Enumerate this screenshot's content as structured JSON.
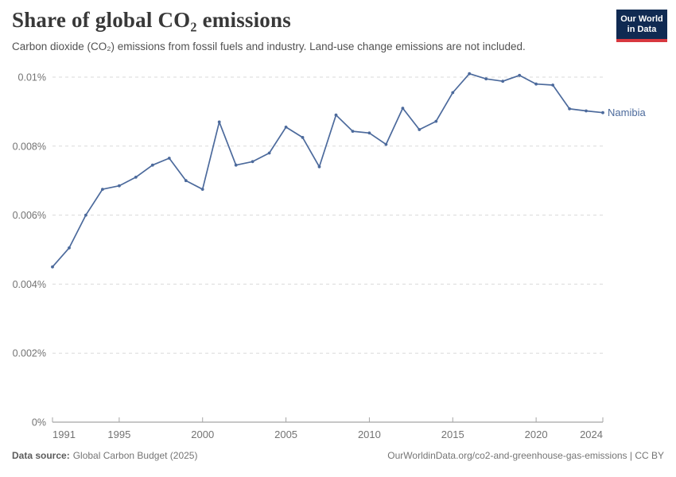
{
  "header": {
    "title": "Share of global CO₂ emissions",
    "subtitle": "Carbon dioxide (CO₂) emissions from fossil fuels and industry. Land-use change emissions are not included.",
    "logo": {
      "line1": "Our World",
      "line2": "in Data",
      "bg_color": "#102a52",
      "accent_color": "#d8383f"
    }
  },
  "chart_data": {
    "type": "line",
    "title": "Share of global CO₂ emissions",
    "xlabel": "",
    "ylabel": "",
    "unit": "%",
    "grid": "horizontal-dashed",
    "legend_position": "end-of-line-label",
    "xlim": [
      1991,
      2024
    ],
    "ylim": [
      0,
      0.01
    ],
    "x": [
      1991,
      1992,
      1993,
      1994,
      1995,
      1996,
      1997,
      1998,
      1999,
      2000,
      2001,
      2002,
      2003,
      2004,
      2005,
      2006,
      2007,
      2008,
      2009,
      2010,
      2011,
      2012,
      2013,
      2014,
      2015,
      2016,
      2017,
      2018,
      2019,
      2020,
      2021,
      2022,
      2023,
      2024
    ],
    "series": [
      {
        "name": "Namibia",
        "color": "#4c6a9c",
        "values": [
          0.0045,
          0.00505,
          0.006,
          0.00675,
          0.00685,
          0.0071,
          0.00745,
          0.00765,
          0.007,
          0.00675,
          0.0087,
          0.00745,
          0.00755,
          0.0078,
          0.00855,
          0.00825,
          0.0074,
          0.0089,
          0.00843,
          0.00838,
          0.00805,
          0.0091,
          0.00848,
          0.00872,
          0.00955,
          0.0101,
          0.00995,
          0.00988,
          0.01005,
          0.0098,
          0.00977,
          0.00908,
          0.00902,
          0.00897
        ]
      }
    ],
    "x_ticks": [
      {
        "value": 1991,
        "label": "1991"
      },
      {
        "value": 1995,
        "label": "1995"
      },
      {
        "value": 2000,
        "label": "2000"
      },
      {
        "value": 2005,
        "label": "2005"
      },
      {
        "value": 2010,
        "label": "2010"
      },
      {
        "value": 2015,
        "label": "2015"
      },
      {
        "value": 2020,
        "label": "2020"
      },
      {
        "value": 2024,
        "label": "2024"
      }
    ],
    "y_ticks": [
      {
        "value": 0,
        "label": "0%"
      },
      {
        "value": 0.002,
        "label": "0.002%"
      },
      {
        "value": 0.004,
        "label": "0.004%"
      },
      {
        "value": 0.006,
        "label": "0.006%"
      },
      {
        "value": 0.008,
        "label": "0.008%"
      },
      {
        "value": 0.01,
        "label": "0.01%"
      }
    ],
    "axis_color": "#8f8f8f",
    "gridline_color": "#dadada",
    "tick_label_color": "#737373"
  },
  "footer": {
    "source_label": "Data source:",
    "source_value": "Global Carbon Budget (2025)",
    "link": "OurWorldinData.org/co2-and-greenhouse-gas-emissions | CC BY"
  }
}
